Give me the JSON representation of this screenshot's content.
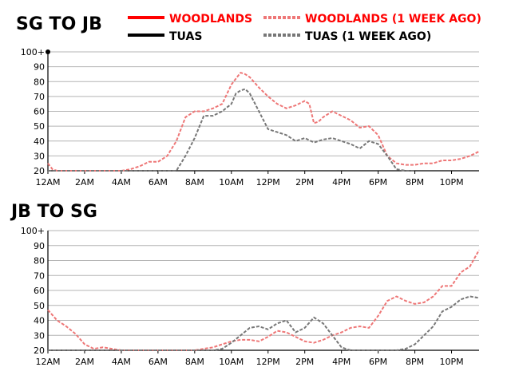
{
  "legend": [
    {
      "label": "WOODLANDS",
      "color": "#ff0000",
      "dashed": false
    },
    {
      "label": "WOODLANDS (1 WEEK AGO)",
      "color": "#ee7777",
      "dashed": true
    },
    {
      "label": "TUAS",
      "color": "#000000",
      "dashed": false
    },
    {
      "label": "TUAS (1 WEEK AGO)",
      "color": "#777777",
      "dashed": true
    }
  ],
  "chart_data": [
    {
      "type": "line",
      "title": "SG TO JB",
      "xlabel": "",
      "ylabel": "",
      "xlim": [
        0,
        23.5
      ],
      "ylim": [
        20,
        100
      ],
      "xticks": [
        {
          "x": 0,
          "label": "12AM"
        },
        {
          "x": 2,
          "label": "2AM"
        },
        {
          "x": 4,
          "label": "4AM"
        },
        {
          "x": 6,
          "label": "6AM"
        },
        {
          "x": 8,
          "label": "8AM"
        },
        {
          "x": 10,
          "label": "10AM"
        },
        {
          "x": 12,
          "label": "12PM"
        },
        {
          "x": 14,
          "label": "2PM"
        },
        {
          "x": 16,
          "label": "4PM"
        },
        {
          "x": 18,
          "label": "6PM"
        },
        {
          "x": 20,
          "label": "8PM"
        },
        {
          "x": 22,
          "label": "10PM"
        }
      ],
      "yticks": [
        {
          "y": 20,
          "label": "20"
        },
        {
          "y": 30,
          "label": "30"
        },
        {
          "y": 40,
          "label": "40"
        },
        {
          "y": 50,
          "label": "50"
        },
        {
          "y": 60,
          "label": "60"
        },
        {
          "y": 70,
          "label": "70"
        },
        {
          "y": 80,
          "label": "80"
        },
        {
          "y": 90,
          "label": "90"
        },
        {
          "y": 100,
          "label": "100+"
        }
      ],
      "grid": true,
      "marker": {
        "x": 0,
        "y": 100
      },
      "series": [
        {
          "name": "WOODLANDS (1 WEEK AGO)",
          "color": "#ee7777",
          "dashed": true,
          "x": [
            0,
            0.25,
            0.5,
            1,
            2,
            3,
            4,
            4.5,
            5,
            5.5,
            6,
            6.5,
            7,
            7.5,
            8,
            8.5,
            9,
            9.5,
            10,
            10.25,
            10.5,
            10.75,
            11,
            11.5,
            12,
            12.5,
            13,
            13.5,
            14,
            14.25,
            14.5,
            14.75,
            15,
            15.5,
            16,
            16.5,
            17,
            17.5,
            18,
            18.5,
            19,
            19.5,
            20,
            20.5,
            21,
            21.5,
            22,
            22.5,
            23,
            23.5
          ],
          "y": [
            25,
            21,
            20,
            20,
            20,
            20,
            20,
            21,
            23,
            26,
            26,
            30,
            40,
            56,
            60,
            60,
            62,
            65,
            78,
            82,
            86,
            85,
            83,
            76,
            70,
            65,
            62,
            64,
            67,
            65,
            52,
            53,
            56,
            60,
            57,
            54,
            49,
            50,
            44,
            30,
            25,
            24,
            24,
            25,
            25,
            27,
            27,
            28,
            30,
            33
          ]
        },
        {
          "name": "TUAS (1 WEEK AGO)",
          "color": "#777777",
          "dashed": true,
          "x": [
            0,
            1,
            2,
            3,
            4,
            5,
            6,
            6.5,
            7,
            7.5,
            8,
            8.5,
            9,
            9.5,
            10,
            10.25,
            10.5,
            10.75,
            11,
            11.5,
            12,
            12.5,
            13,
            13.5,
            14,
            14.5,
            15,
            15.5,
            16,
            16.5,
            17,
            17.5,
            18,
            18.5,
            19,
            19.5,
            20
          ],
          "y": [
            20,
            20,
            20,
            20,
            20,
            20,
            20,
            20,
            20,
            30,
            42,
            57,
            57,
            60,
            65,
            72,
            74,
            75,
            72,
            60,
            48,
            46,
            44,
            40,
            42,
            39,
            41,
            42,
            40,
            38,
            35,
            40,
            38,
            30,
            21,
            20,
            20
          ]
        }
      ]
    },
    {
      "type": "line",
      "title": "JB TO SG",
      "xlabel": "",
      "ylabel": "",
      "xlim": [
        0,
        23.5
      ],
      "ylim": [
        20,
        100
      ],
      "xticks": [
        {
          "x": 0,
          "label": "12AM"
        },
        {
          "x": 2,
          "label": "2AM"
        },
        {
          "x": 4,
          "label": "4AM"
        },
        {
          "x": 6,
          "label": "6AM"
        },
        {
          "x": 8,
          "label": "8AM"
        },
        {
          "x": 10,
          "label": "10AM"
        },
        {
          "x": 12,
          "label": "12PM"
        },
        {
          "x": 14,
          "label": "2PM"
        },
        {
          "x": 16,
          "label": "4PM"
        },
        {
          "x": 18,
          "label": "6PM"
        },
        {
          "x": 20,
          "label": "8PM"
        },
        {
          "x": 22,
          "label": "10PM"
        }
      ],
      "yticks": [
        {
          "y": 20,
          "label": "20"
        },
        {
          "y": 30,
          "label": "30"
        },
        {
          "y": 40,
          "label": "40"
        },
        {
          "y": 50,
          "label": "50"
        },
        {
          "y": 60,
          "label": "60"
        },
        {
          "y": 70,
          "label": "70"
        },
        {
          "y": 80,
          "label": "80"
        },
        {
          "y": 90,
          "label": "90"
        },
        {
          "y": 100,
          "label": "100+"
        }
      ],
      "grid": true,
      "series": [
        {
          "name": "WOODLANDS (1 WEEK AGO)",
          "color": "#ee7777",
          "dashed": true,
          "x": [
            0,
            0.5,
            1,
            1.5,
            2,
            2.5,
            3,
            4,
            5,
            6,
            7,
            8,
            8.5,
            9,
            9.5,
            10,
            10.5,
            11,
            11.5,
            12,
            12.5,
            13,
            13.5,
            14,
            14.5,
            15,
            15.5,
            16,
            16.5,
            17,
            17.5,
            18,
            18.5,
            19,
            19.5,
            20,
            20.5,
            21,
            21.5,
            22,
            22.5,
            23,
            23.5
          ],
          "y": [
            47,
            40,
            36,
            31,
            24,
            21,
            22,
            20,
            20,
            20,
            20,
            20,
            21,
            22,
            24,
            26,
            27,
            27,
            26,
            29,
            33,
            32,
            29,
            26,
            25,
            27,
            30,
            32,
            35,
            36,
            35,
            43,
            53,
            56,
            53,
            51,
            52,
            56,
            63,
            63,
            72,
            76,
            87
          ]
        },
        {
          "name": "TUAS (1 WEEK AGO)",
          "color": "#777777",
          "dashed": true,
          "x": [
            0,
            1,
            2,
            3,
            4,
            5,
            6,
            7,
            8,
            9,
            9.5,
            10,
            10.5,
            11,
            11.5,
            12,
            12.5,
            13,
            13.5,
            14,
            14.5,
            15,
            15.5,
            16,
            16.5,
            17,
            18,
            19,
            19.5,
            20,
            20.5,
            21,
            21.5,
            22,
            22.5,
            23,
            23.5
          ],
          "y": [
            20,
            20,
            20,
            20,
            20,
            20,
            20,
            20,
            20,
            20,
            21,
            25,
            30,
            35,
            36,
            34,
            38,
            40,
            32,
            35,
            42,
            38,
            30,
            22,
            20,
            20,
            20,
            20,
            21,
            24,
            30,
            36,
            46,
            49,
            54,
            56,
            55
          ]
        }
      ]
    }
  ]
}
